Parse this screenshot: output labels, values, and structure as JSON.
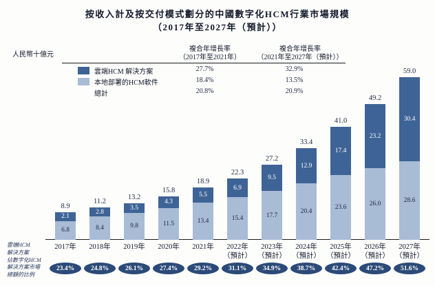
{
  "title": {
    "line1": "按收入計及按交付模式劃分的中國數字化HCM行業市場規模",
    "line2": "（2017年至2027年（預計））"
  },
  "unit_label": "人民幣十億元",
  "cagr_table": {
    "columns": [
      {
        "line1": "複合年增長率",
        "line2": "（2017年至2021年）"
      },
      {
        "line1": "複合年增長率",
        "line2": "（2021年至2027年（預計））"
      }
    ],
    "rows": [
      {
        "label": "雲端HCM 解決方案",
        "swatch": "cloud",
        "values": [
          "27.7%",
          "32.9%"
        ]
      },
      {
        "label": "本地部署的HCM軟件",
        "swatch": "onprem",
        "values": [
          "18.4%",
          "13.5%"
        ]
      },
      {
        "label": "總計",
        "swatch": "",
        "values": [
          "20.8%",
          "20.9%"
        ]
      }
    ]
  },
  "share_row_label_lines": [
    "雲端HCM",
    "解決方案",
    "佔數字化HCM",
    "解決方案市場",
    "總額的比例"
  ],
  "colors": {
    "cloud": "#3e6396",
    "onprem": "#a8bcd6",
    "oval": "#2b4a78",
    "text": "#1c2740",
    "line": "#1a1a1a"
  },
  "chart_data": {
    "type": "bar",
    "stacked": true,
    "title": "按收入計及按交付模式劃分的中國數字化HCM行業市場規模（2017年至2027年（預計））",
    "ylabel": "人民幣十億元",
    "ylim": [
      0,
      60
    ],
    "grid": false,
    "legend_position": "top-left",
    "categories": [
      "2017年",
      "2018年",
      "2019年",
      "2020年",
      "2021年",
      "2022年",
      "2023年",
      "2024年",
      "2025年",
      "2026年",
      "2027年"
    ],
    "forecast_flags": [
      false,
      false,
      false,
      false,
      false,
      true,
      true,
      true,
      true,
      true,
      true
    ],
    "forecast_suffix": "（預計）",
    "series": [
      {
        "name": "雲端HCM 解決方案",
        "values": [
          2.1,
          2.8,
          3.5,
          4.3,
          5.5,
          6.9,
          9.5,
          12.9,
          17.4,
          23.2,
          30.4
        ],
        "labels": [
          "2.1",
          "2.8",
          "3.5",
          "4.3",
          "5.5",
          "6.9",
          "9.5",
          "12.9",
          "17.4",
          "23.2",
          "30.4"
        ]
      },
      {
        "name": "本地部署的HCM軟件",
        "values": [
          6.8,
          8.4,
          9.8,
          11.5,
          13.4,
          15.4,
          17.7,
          20.4,
          23.6,
          26.0,
          28.6
        ],
        "labels": [
          "6.8",
          "8.4",
          "9.8",
          "11.5",
          "13.4",
          "15.4",
          "17.7",
          "20.4",
          "23.6",
          "26.0",
          "28.6"
        ]
      }
    ],
    "totals": [
      8.9,
      11.2,
      13.2,
      15.8,
      18.9,
      22.3,
      27.2,
      33.4,
      41.0,
      49.2,
      59.0
    ],
    "total_labels": [
      "8.9",
      "11.2",
      "13.2",
      "15.8",
      "18.9",
      "22.3",
      "27.2",
      "33.4",
      "41.0",
      "49.2",
      "59.0"
    ],
    "cloud_share_of_total": [
      "23.4%",
      "24.8%",
      "26.1%",
      "27.4%",
      "29.2%",
      "31.1%",
      "34.9%",
      "38.7%",
      "42.4%",
      "47.2%",
      "51.6%"
    ],
    "cagr": {
      "period_2017_2021": {
        "cloud": "27.7%",
        "onprem": "18.4%",
        "total": "20.8%"
      },
      "period_2021_2027_forecast": {
        "cloud": "32.9%",
        "onprem": "13.5%",
        "total": "20.9%"
      }
    }
  }
}
